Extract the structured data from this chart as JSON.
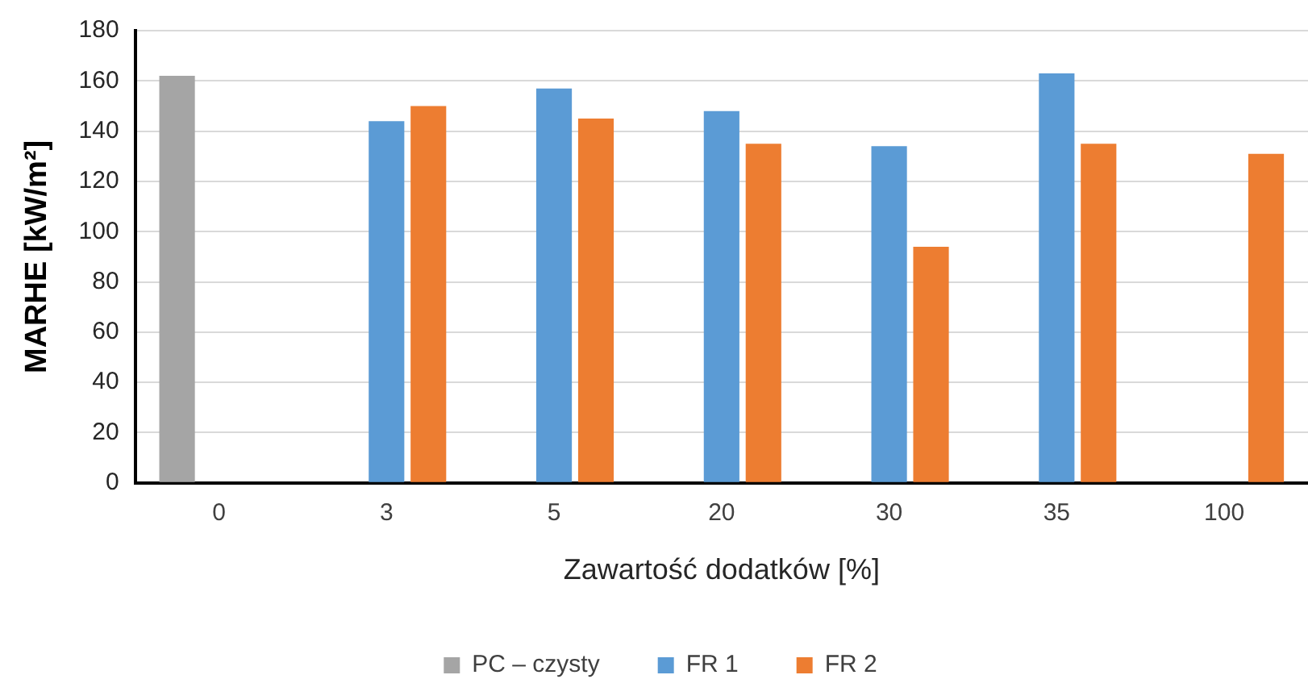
{
  "chart_data": {
    "type": "bar",
    "xlabel": "Zawartość dodatków [%]",
    "ylabel": "MARHE [kW/m²]",
    "categories": [
      "0",
      "3",
      "5",
      "20",
      "30",
      "35",
      "100"
    ],
    "series": [
      {
        "name": "PC – czysty",
        "color": "#a5a5a5",
        "values": [
          162,
          null,
          null,
          null,
          null,
          null,
          null
        ]
      },
      {
        "name": "FR 1",
        "color": "#5b9bd5",
        "values": [
          null,
          144,
          157,
          148,
          134,
          163,
          null
        ]
      },
      {
        "name": "FR 2",
        "color": "#ed7d31",
        "values": [
          null,
          150,
          145,
          135,
          94,
          135,
          131
        ]
      }
    ],
    "ylim": [
      0,
      180
    ],
    "yticks": [
      0,
      20,
      40,
      60,
      80,
      100,
      120,
      140,
      160,
      180
    ],
    "grid": "y",
    "legend": "bottom"
  }
}
